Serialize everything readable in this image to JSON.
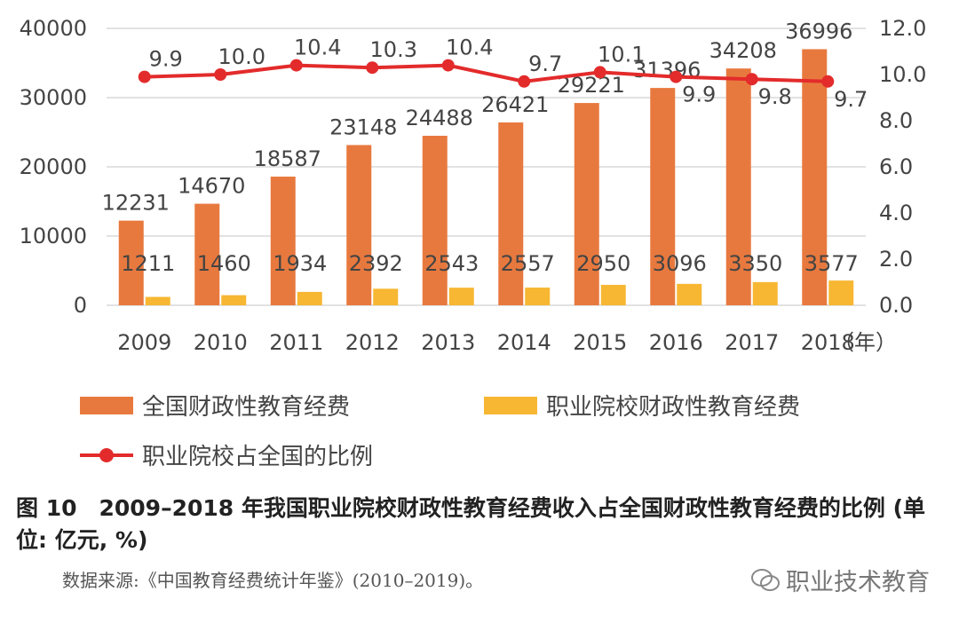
{
  "chart_data": {
    "type": "bar",
    "categories": [
      "2009",
      "2010",
      "2011",
      "2012",
      "2013",
      "2014",
      "2015",
      "2016",
      "2017",
      "2018"
    ],
    "xunit": "（年）",
    "series": [
      {
        "name": "全国财政性教育经费",
        "type": "bar",
        "axis": "left",
        "color": "#e8793e",
        "values": [
          12231,
          14670,
          18587,
          23148,
          24488,
          26421,
          29221,
          31396,
          34208,
          36996
        ]
      },
      {
        "name": "职业院校财政性教育经费",
        "type": "bar",
        "axis": "left",
        "color": "#f7b733",
        "values": [
          1211,
          1460,
          1934,
          2392,
          2543,
          2557,
          2950,
          3096,
          3350,
          3577
        ]
      },
      {
        "name": "职业院校占全国的比例",
        "type": "line",
        "axis": "right",
        "color": "#e32b2b",
        "values": [
          9.9,
          10.0,
          10.4,
          10.3,
          10.4,
          9.7,
          10.1,
          9.9,
          9.8,
          9.7
        ],
        "labels": [
          "9.9",
          "10.0",
          "10.4",
          "10.3",
          "10.4",
          "9.7",
          "10.1",
          "9.9",
          "9.8",
          "9.7"
        ]
      }
    ],
    "y_left": {
      "ylim": [
        0,
        40000
      ],
      "ticks": [
        "0",
        "10000",
        "20000",
        "30000",
        "40000"
      ]
    },
    "y_right": {
      "ylim": [
        0,
        12
      ],
      "ticks": [
        "0.0",
        "2.0",
        "4.0",
        "6.0",
        "8.0",
        "10.0",
        "12.0"
      ]
    },
    "grid": true,
    "legend_position": "bottom"
  },
  "caption": "图 10　2009–2018 年我国职业院校财政性教育经费收入占全国财政性教育经费的比例 (单位: 亿元, %)",
  "source": "数据来源:《中国教育经费统计年鉴》(2010–2019)。",
  "watermark": "职业技术教育"
}
